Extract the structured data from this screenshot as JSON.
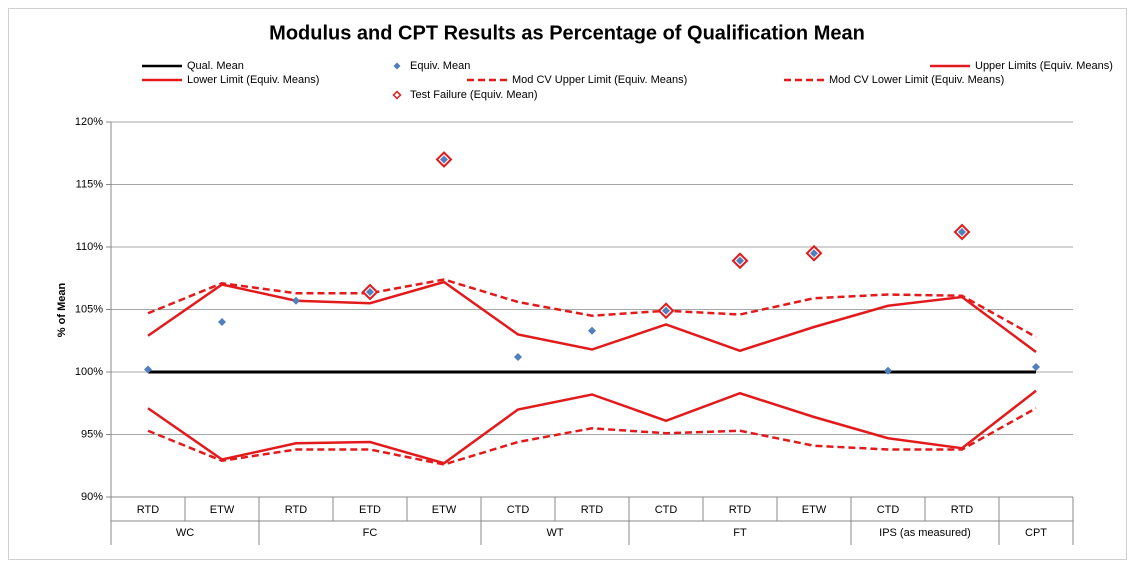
{
  "chart_data": {
    "type": "line",
    "title": "Modulus and CPT Results as Percentage of Qualification Mean",
    "y_label": "% of Mean",
    "category_groups": [
      {
        "name": "WC",
        "categories": [
          "RTD",
          "ETW"
        ]
      },
      {
        "name": "FC",
        "categories": [
          "RTD",
          "ETD",
          "ETW"
        ]
      },
      {
        "name": "WT",
        "categories": [
          "CTD",
          "RTD"
        ]
      },
      {
        "name": "FT",
        "categories": [
          "CTD",
          "RTD",
          "ETW"
        ]
      },
      {
        "name": "IPS (as measured)",
        "categories": [
          "CTD",
          "RTD"
        ]
      },
      {
        "name": "CPT",
        "categories": [
          null
        ]
      }
    ],
    "ylim": [
      90,
      120
    ],
    "yticks": [
      {
        "value": 90,
        "label": "90%"
      },
      {
        "value": 95,
        "label": "95%"
      },
      {
        "value": 100,
        "label": "100%"
      },
      {
        "value": 105,
        "label": "105%"
      },
      {
        "value": 110,
        "label": "110%"
      },
      {
        "value": 115,
        "label": "115%"
      },
      {
        "value": 120,
        "label": "120%"
      }
    ],
    "grid": true,
    "series": [
      {
        "name": "Qual. Mean",
        "color": "#000000",
        "line_style": "solid",
        "marker": "none",
        "values": [
          100,
          100,
          100,
          100,
          100,
          100,
          100,
          100,
          100,
          100,
          100,
          100,
          100
        ]
      },
      {
        "name": "Equiv. Mean",
        "color": "#4f7fbd",
        "line_style": "none",
        "marker": "diamond",
        "values": [
          100.2,
          104.0,
          105.7,
          106.4,
          117.0,
          101.2,
          103.3,
          104.9,
          108.9,
          109.5,
          100.1,
          111.2,
          100.4
        ]
      },
      {
        "name": "Upper Limits (Equiv. Means)",
        "color": "#e31a1c",
        "line_style": "solid",
        "marker": "none",
        "values": [
          102.9,
          107.0,
          105.7,
          105.5,
          107.2,
          103.0,
          101.8,
          103.8,
          101.7,
          103.6,
          105.3,
          106.0,
          101.6
        ]
      },
      {
        "name": "Lower Limit (Equiv. Means)",
        "color": "#e31a1c",
        "line_style": "solid",
        "marker": "none",
        "values": [
          97.1,
          93.0,
          94.3,
          94.4,
          92.7,
          97.0,
          98.2,
          96.1,
          98.3,
          96.4,
          94.7,
          93.9,
          98.5
        ]
      },
      {
        "name": "Mod CV Upper Limit (Equiv. Means)",
        "color": "#e31a1c",
        "line_style": "dashed",
        "marker": "none",
        "values": [
          104.7,
          107.1,
          106.3,
          106.3,
          107.4,
          105.6,
          104.5,
          104.9,
          104.6,
          105.9,
          106.2,
          106.1,
          102.8
        ]
      },
      {
        "name": "Mod CV Lower Limit (Equiv. Means)",
        "color": "#e31a1c",
        "line_style": "dashed",
        "marker": "none",
        "values": [
          95.3,
          92.9,
          93.8,
          93.8,
          92.6,
          94.4,
          95.5,
          95.1,
          95.3,
          94.1,
          93.8,
          93.8,
          97.1
        ]
      },
      {
        "name": "Test Failure (Equiv. Mean)",
        "color": "#e31a1c",
        "line_style": "none",
        "marker": "hollow-diamond",
        "values": [
          null,
          null,
          null,
          106.4,
          117.0,
          null,
          null,
          104.9,
          108.9,
          109.5,
          null,
          111.2,
          null
        ]
      }
    ]
  }
}
